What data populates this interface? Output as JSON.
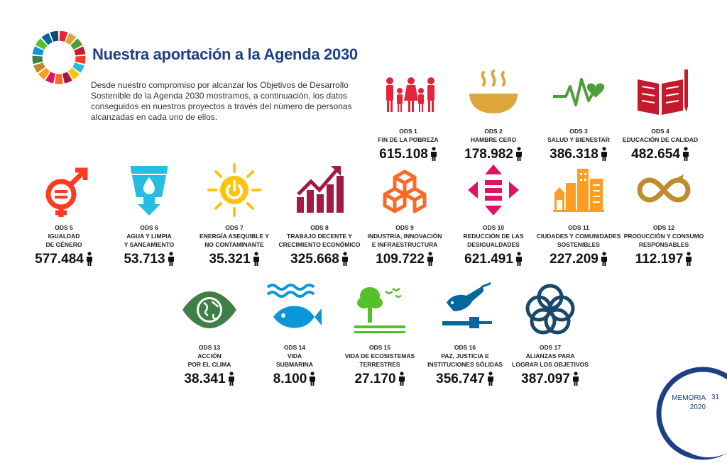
{
  "header": {
    "title": "Nuestra aportación a la Agenda 2030",
    "intro": "Desde nuestro compromiso por alcanzar los Objetivos de Desarrollo Sostenible de la Agenda 2030 mostramos, a continuación, los datos conseguidos en nuestros proyectos a través del número de personas alcanzadas en cada uno de ellos."
  },
  "colors": {
    "title": "#1f3f85",
    "ods1": "#e5243b",
    "ods2": "#dda63a",
    "ods3": "#4c9f38",
    "ods4": "#c5192d",
    "ods5": "#ff3a21",
    "ods6": "#26bde2",
    "ods7": "#fcc30b",
    "ods8": "#a21942",
    "ods9": "#fd6925",
    "ods10": "#dd1367",
    "ods11": "#fd9d24",
    "ods12": "#bf8b2e",
    "ods13": "#3f7e44",
    "ods14": "#0a97d9",
    "ods15": "#56c02b",
    "ods16": "#00689d",
    "ods17": "#19486a"
  },
  "goals": [
    {
      "code": "ODS 1",
      "name": "FIN DE LA POBREZA",
      "value": "615.108",
      "icon": "poverty-icon"
    },
    {
      "code": "ODS 2",
      "name": "HAMBRE CERO",
      "value": "178.982",
      "icon": "hunger-bowl-icon"
    },
    {
      "code": "ODS 3",
      "name": "SALUD Y BIENESTAR",
      "value": "386.318",
      "icon": "heartbeat-icon"
    },
    {
      "code": "ODS 4",
      "name": "EDUCACIÓN DE CALIDAD",
      "value": "482.654",
      "icon": "book-pencil-icon"
    },
    {
      "code": "ODS 5",
      "name": "IGUALDAD\nDE GÉNERO",
      "value": "577.484",
      "icon": "gender-equality-icon"
    },
    {
      "code": "ODS 6",
      "name": "AGUA Y LIMPIA\nY SANEAMIENTO",
      "value": "53.713",
      "icon": "water-glass-icon"
    },
    {
      "code": "ODS 7",
      "name": "ENERGÍA ASEQUIBLE Y\nNO CONTAMINANTE",
      "value": "35.321",
      "icon": "sun-power-icon"
    },
    {
      "code": "ODS 8",
      "name": "TRABAJO DECENTE Y\nCRECIMIENTO ECONÓMICO",
      "value": "325.668",
      "icon": "growth-chart-icon"
    },
    {
      "code": "ODS 9",
      "name": "INDUSTRIA, INNOVACIÓN\nE INFRAESTRUCTURA",
      "value": "109.722",
      "icon": "cubes-icon"
    },
    {
      "code": "ODS 10",
      "name": "REDUCCIÓN DE LAS\nDESIGUALDADES",
      "value": "621.491",
      "icon": "equality-arrows-icon"
    },
    {
      "code": "ODS 11",
      "name": "CIUDADES Y COMUNIDADES\nSOSTENIBLES",
      "value": "227.209",
      "icon": "city-buildings-icon"
    },
    {
      "code": "ODS 12",
      "name": "PRODUCCIÓN Y CONSUMO\nRESPONSABLES",
      "value": "112.197",
      "icon": "infinity-loop-icon"
    },
    {
      "code": "ODS 13",
      "name": "ACCIÓN\nPOR EL CLIMA",
      "value": "38.341",
      "icon": "earth-eye-icon"
    },
    {
      "code": "ODS 14",
      "name": "VIDA\nSUBMARINA",
      "value": "8.100",
      "icon": "fish-waves-icon"
    },
    {
      "code": "ODS 15",
      "name": "VIDA DE ECOSISTEMAS\nTERRESTRES",
      "value": "27.170",
      "icon": "tree-birds-icon"
    },
    {
      "code": "ODS 16",
      "name": "PAZ, JUSTICIA E\nINSTITUCIONES SÓLIDAS",
      "value": "356.747",
      "icon": "dove-gavel-icon"
    },
    {
      "code": "ODS 17",
      "name": "ALIANZAS PARA\nLOGRAR LOS OBJETIVOS",
      "value": "387.097",
      "icon": "rings-flower-icon"
    }
  ],
  "footer": {
    "label": "MEMORIA",
    "year": "2020",
    "page": "31"
  }
}
